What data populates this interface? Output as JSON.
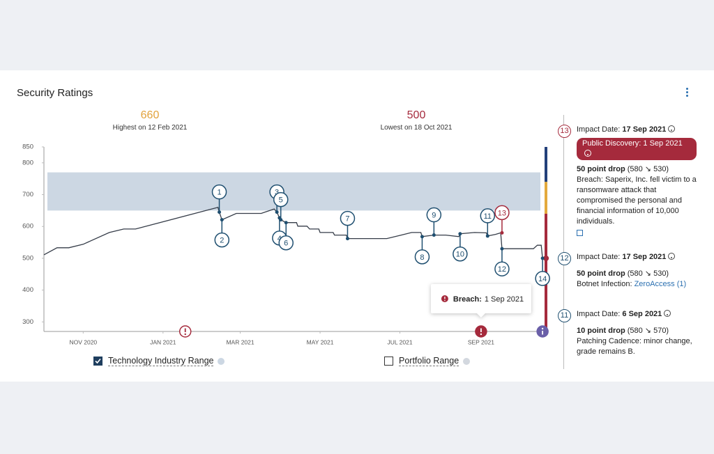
{
  "header": {
    "title": "Security Ratings"
  },
  "stats": [
    {
      "value": 660,
      "label": "Highest on 12 Feb 2021",
      "color": "#e2a23b"
    },
    {
      "value": 500,
      "label": "Lowest on 18 Oct 2021",
      "color": "#a52a3c"
    }
  ],
  "chart_data": {
    "type": "line",
    "color": "#353c48",
    "x": [
      "2020-10-02",
      "2020-10-12",
      "2020-10-21",
      "2020-11-01",
      "2020-11-21",
      "2020-12-02",
      "2020-12-11",
      "2021-02-12",
      "2021-02-13",
      "2021-02-15",
      "2021-02-26",
      "2021-03-17",
      "2021-03-27",
      "2021-03-29",
      "2021-03-31",
      "2021-04-01",
      "2021-04-05",
      "2021-04-13",
      "2021-04-14",
      "2021-04-21",
      "2021-04-23",
      "2021-04-30",
      "2021-05-01",
      "2021-05-11",
      "2021-05-12",
      "2021-05-21",
      "2021-05-22",
      "2021-06-21",
      "2021-07-02",
      "2021-07-10",
      "2021-07-17",
      "2021-07-18",
      "2021-07-27",
      "2021-08-05",
      "2021-08-15",
      "2021-08-16",
      "2021-08-27",
      "2021-09-05",
      "2021-09-06",
      "2021-09-12",
      "2021-09-16",
      "2021-09-17",
      "2021-10-11",
      "2021-10-14",
      "2021-10-17",
      "2021-10-18"
    ],
    "values": [
      511,
      533,
      533,
      544,
      581,
      592,
      592,
      660,
      645,
      621,
      641,
      641,
      655,
      645,
      627,
      621,
      612,
      612,
      601,
      601,
      592,
      592,
      581,
      581,
      573,
      573,
      562,
      562,
      573,
      581,
      581,
      568,
      573,
      573,
      568,
      577,
      581,
      580,
      570,
      575,
      580,
      530,
      530,
      541,
      541,
      500
    ],
    "xlim": [
      "2020-10-02",
      "2021-10-19"
    ],
    "xticks": [
      {
        "value": "2020-11-01",
        "label": "NOV 2020"
      },
      {
        "value": "2021-01-01",
        "label": "JAN 2021"
      },
      {
        "value": "2021-03-01",
        "label": "MAR 2021"
      },
      {
        "value": "2021-05-01",
        "label": "MAY 2021"
      },
      {
        "value": "2021-07-01",
        "label": "JUL 2021"
      },
      {
        "value": "2021-09-01",
        "label": "SEP 2021"
      }
    ],
    "ylim": [
      270,
      850
    ],
    "yticks": [
      300,
      400,
      500,
      600,
      700,
      800,
      850
    ],
    "band": {
      "name": "Technology Industry Range",
      "range": [
        650,
        770
      ],
      "color": "#ccd7e3",
      "shown": true
    },
    "portfolio": {
      "name": "Portfolio Range",
      "color": "#d3d8df",
      "shown": false
    },
    "rating_bands": [
      {
        "from": 740,
        "to": 850,
        "color": "#23407a"
      },
      {
        "from": 640,
        "to": 740,
        "color": "#e3a93c"
      },
      {
        "from": 270,
        "to": 640,
        "color": "#a52a3c"
      }
    ],
    "events": [
      {
        "label": "1",
        "date": "2021-02-13",
        "value": 645,
        "side": "above",
        "color": "#1f4f70"
      },
      {
        "label": "2",
        "date": "2021-02-15",
        "value": 621,
        "side": "below",
        "color": "#1f4f70"
      },
      {
        "label": "3",
        "date": "2021-03-29",
        "value": 645,
        "side": "above",
        "color": "#1f4f70"
      },
      {
        "label": "4",
        "date": "2021-03-31",
        "value": 627,
        "side": "below",
        "color": "#1f4f70"
      },
      {
        "label": "5",
        "date": "2021-04-01",
        "value": 621,
        "side": "above",
        "color": "#1f4f70"
      },
      {
        "label": "6",
        "date": "2021-04-05",
        "value": 612,
        "side": "below",
        "color": "#1f4f70"
      },
      {
        "label": "7",
        "date": "2021-05-22",
        "value": 562,
        "side": "above",
        "color": "#1f4f70"
      },
      {
        "label": "8",
        "date": "2021-07-18",
        "value": 568,
        "side": "below",
        "color": "#1f4f70"
      },
      {
        "label": "9",
        "date": "2021-07-27",
        "value": 573,
        "side": "above",
        "color": "#1f4f70"
      },
      {
        "label": "10",
        "date": "2021-08-16",
        "value": 577,
        "side": "below",
        "color": "#1f4f70"
      },
      {
        "label": "11",
        "date": "2021-09-06",
        "value": 570,
        "side": "above",
        "color": "#1f4f70"
      },
      {
        "label": "12",
        "date": "2021-09-17",
        "value": 530,
        "side": "below",
        "color": "#1f4f70"
      },
      {
        "label": "13",
        "date": "2021-09-17",
        "value": 580,
        "side": "above",
        "color": "#a52a3c"
      },
      {
        "label": "14",
        "date": "2021-10-18",
        "value": 500,
        "side": "below",
        "color": "#1f4f70"
      }
    ],
    "alerts": [
      {
        "date": "2021-01-18",
        "style": "outline",
        "color": "#a52a3c"
      },
      {
        "date": "2021-09-01",
        "style": "filled",
        "color": "#a52a3c",
        "tooltip": {
          "label": "Breach:",
          "date": "1 Sep 2021"
        }
      },
      {
        "date": "2021-10-18",
        "style": "info",
        "color": "#6a5fa8"
      }
    ]
  },
  "panel": {
    "items": [
      {
        "number": "13",
        "color": "#a52a3c",
        "impact_label": "Impact Date:",
        "impact_date": "17 Sep 2021",
        "badge": "Public Discovery: 1 Sep 2021",
        "drop": "50 point drop",
        "change": "(580 ↘ 530)",
        "description": "Breach: Saperix, Inc. fell victim to a ransomware attack that compromised the personal and financial information of 10,000 individuals."
      },
      {
        "number": "12",
        "color": "#1f4f70",
        "impact_label": "Impact Date:",
        "impact_date": "17 Sep 2021",
        "drop": "50 point drop",
        "change": "(580 ↘ 530)",
        "description": "Botnet Infection:",
        "link": "ZeroAccess (1)"
      },
      {
        "number": "11",
        "color": "#1f4f70",
        "impact_label": "Impact Date:",
        "impact_date": "6 Sep 2021",
        "drop": "10 point drop",
        "change": "(580 ↘ 570)",
        "description": "Patching Cadence: minor change, grade remains B."
      }
    ]
  }
}
